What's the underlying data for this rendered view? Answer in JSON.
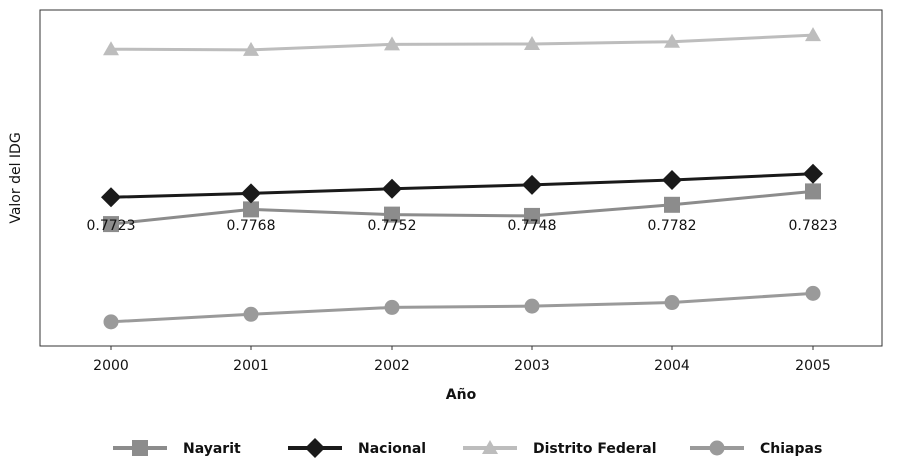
{
  "chart_data": {
    "type": "line",
    "xlabel": "Año",
    "ylabel": "Valor del IDG",
    "x": [
      "2000",
      "2001",
      "2002",
      "2003",
      "2004",
      "2005"
    ],
    "ylim": [
      0.735,
      0.8378
    ],
    "grid": false,
    "legend_position": "bottom",
    "series": [
      {
        "name": "Nayarit",
        "marker": "square",
        "color": "#8c8c8c",
        "values": [
          0.7723,
          0.7768,
          0.7752,
          0.7748,
          0.7782,
          0.7823
        ],
        "labels": [
          "0.7723",
          "0.7768",
          "0.7752",
          "0.7748",
          "0.7782",
          "0.7823"
        ]
      },
      {
        "name": "Nacional",
        "marker": "diamond",
        "color": "#1a1a1a",
        "values": [
          0.7805,
          0.7817,
          0.7831,
          0.7843,
          0.7858,
          0.7877
        ]
      },
      {
        "name": "Distrito Federal",
        "marker": "triangle",
        "color": "#bdbdbd",
        "values": [
          0.8258,
          0.8256,
          0.8273,
          0.8274,
          0.8281,
          0.8301
        ]
      },
      {
        "name": "Chiapas",
        "marker": "circle",
        "color": "#9a9a9a",
        "values": [
          0.7424,
          0.7447,
          0.7468,
          0.7472,
          0.7483,
          0.7511
        ]
      }
    ]
  }
}
